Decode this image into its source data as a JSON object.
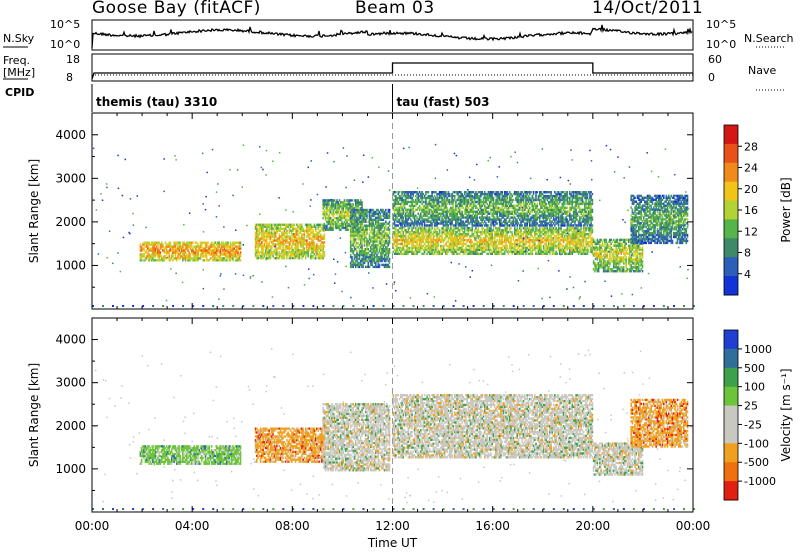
{
  "header": {
    "radar": "Goose Bay (fitACF)",
    "beam": "Beam 03",
    "date": "14/Oct/2011"
  },
  "noise_panel": {
    "left_label": "N.Sky",
    "right_label": "N.Search",
    "left_ticks": [
      "10^5",
      "10^0"
    ],
    "right_ticks": [
      "10^5",
      "10^0"
    ]
  },
  "freq_panel": {
    "left_label_1": "Freq.",
    "left_label_2": "[MHz]",
    "right_label": "Nave",
    "left_ticks": [
      "18",
      "8"
    ],
    "right_ticks": [
      "60",
      "0"
    ]
  },
  "cpid_panel": {
    "label": "CPID",
    "modes": [
      {
        "name": "themis (tau) 3310",
        "start_hour": 0
      },
      {
        "name": "tau (fast) 503",
        "start_hour": 12
      }
    ]
  },
  "colors": {
    "power": [
      "#1433d6",
      "#2e5fb8",
      "#3d8a6a",
      "#56b44a",
      "#b2d235",
      "#f0c419",
      "#f08a1a",
      "#e8501c",
      "#d41616"
    ],
    "velocity": [
      "#1f3fd0",
      "#2f6f9a",
      "#3ea04a",
      "#6cc43a",
      "#c8c8c0",
      "#c8c8c0",
      "#f0a020",
      "#f07010",
      "#e02010"
    ]
  },
  "chart_data": [
    {
      "type": "heatmap",
      "name": "power",
      "ylabel": "Slant Range [km]",
      "x_range_hours": [
        0,
        24
      ],
      "ylim": [
        0,
        4500
      ],
      "y_ticks": [
        1000,
        2000,
        3000,
        4000
      ],
      "colorbar_label": "Power [dB]",
      "colorbar_ticks": [
        "4",
        "8",
        "12",
        "16",
        "20",
        "24",
        "28"
      ],
      "regions": [
        {
          "t": [
            1.9,
            5.9
          ],
          "r": [
            1100,
            1550
          ],
          "v": 20
        },
        {
          "t": [
            6.5,
            9.3
          ],
          "r": [
            1150,
            1950
          ],
          "v": 18
        },
        {
          "t": [
            9.2,
            10.8
          ],
          "r": [
            1800,
            2500
          ],
          "v": 12
        },
        {
          "t": [
            10.3,
            11.9
          ],
          "r": [
            950,
            2300
          ],
          "v": 10
        },
        {
          "t": [
            12.0,
            20.0
          ],
          "r": [
            1250,
            1850
          ],
          "v": 16
        },
        {
          "t": [
            12.0,
            20.0
          ],
          "r": [
            1900,
            2700
          ],
          "v": 9
        },
        {
          "t": [
            20.0,
            22.0
          ],
          "r": [
            850,
            1600
          ],
          "v": 14
        },
        {
          "t": [
            21.5,
            23.8
          ],
          "r": [
            1500,
            2600
          ],
          "v": 8
        }
      ]
    },
    {
      "type": "heatmap",
      "name": "velocity",
      "ylabel": "Slant Range [km]",
      "xlabel": "Time UT",
      "x_range_hours": [
        0,
        24
      ],
      "x_tick_labels": [
        "00:00",
        "04:00",
        "08:00",
        "12:00",
        "16:00",
        "20:00",
        "00:00"
      ],
      "ylim": [
        0,
        4500
      ],
      "y_ticks": [
        1000,
        2000,
        3000,
        4000
      ],
      "colorbar_label": "Velocity [m s⁻¹]",
      "colorbar_ticks": [
        "1000",
        "500",
        "100",
        "25",
        "-25",
        "-100",
        "-500",
        "-1000"
      ],
      "regions": [
        {
          "t": [
            1.9,
            5.9
          ],
          "r": [
            1100,
            1550
          ],
          "v": 3
        },
        {
          "t": [
            6.5,
            9.3
          ],
          "r": [
            1150,
            1950
          ],
          "v": 6
        },
        {
          "t": [
            9.2,
            11.9
          ],
          "r": [
            950,
            2500
          ],
          "v": 4
        },
        {
          "t": [
            12.0,
            20.0
          ],
          "r": [
            1250,
            2700
          ],
          "v": 4
        },
        {
          "t": [
            20.0,
            22.0
          ],
          "r": [
            850,
            1600
          ],
          "v": 4
        },
        {
          "t": [
            21.5,
            23.8
          ],
          "r": [
            1500,
            2600
          ],
          "v": 6
        }
      ]
    }
  ]
}
